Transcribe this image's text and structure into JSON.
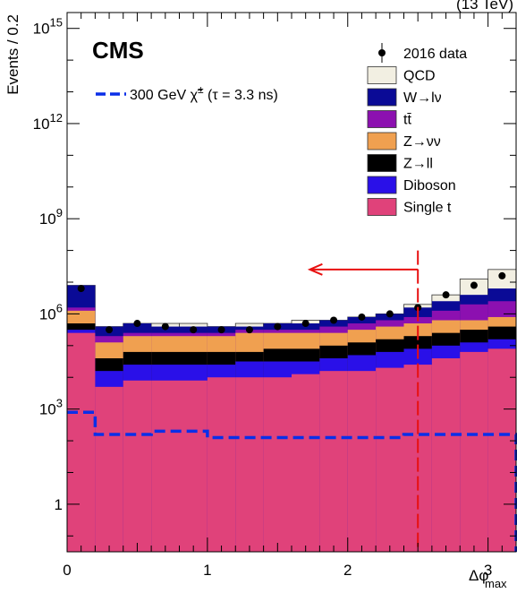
{
  "chart_data": {
    "type": "bar",
    "stacked": true,
    "x_bin_edges": [
      0,
      0.2,
      0.4,
      0.6,
      0.8,
      1.0,
      1.2,
      1.4,
      1.6,
      1.8,
      2.0,
      2.2,
      2.4,
      2.6,
      2.8,
      3.0,
      3.2
    ],
    "xlim": [
      0,
      3.2
    ],
    "ylim_log10": [
      -1.5,
      15.5
    ],
    "y_scale": "log",
    "y_ticks": [
      {
        "exp": 0,
        "label": "1"
      },
      {
        "exp": 3,
        "base": "10",
        "sup": "3"
      },
      {
        "exp": 6,
        "base": "10",
        "sup": "6"
      },
      {
        "exp": 9,
        "base": "10",
        "sup": "9"
      },
      {
        "exp": 12,
        "base": "10",
        "sup": "12"
      },
      {
        "exp": 15,
        "base": "10",
        "sup": "15"
      }
    ],
    "x_ticks": [
      "0",
      "1",
      "2",
      "3"
    ],
    "ylabel": "Events / 0.2",
    "xlabel": "Δφ",
    "xlabel_sub": "max",
    "series": [
      {
        "name": "Single t",
        "color": "#e0427a",
        "log10": [
          5.4,
          3.7,
          3.9,
          3.9,
          3.9,
          4.0,
          4.0,
          4.0,
          4.1,
          4.2,
          4.2,
          4.3,
          4.4,
          4.6,
          4.8,
          4.9
        ]
      },
      {
        "name": "Diboson",
        "color": "#2a10e8",
        "log10": [
          5.5,
          4.2,
          4.4,
          4.4,
          4.4,
          4.4,
          4.5,
          4.5,
          4.5,
          4.6,
          4.7,
          4.8,
          4.9,
          5.0,
          5.1,
          5.2
        ]
      },
      {
        "name": "Z→ll",
        "color": "#000000",
        "log10": [
          5.7,
          4.6,
          4.8,
          4.8,
          4.8,
          4.8,
          4.8,
          4.9,
          4.9,
          5.0,
          5.1,
          5.2,
          5.3,
          5.4,
          5.5,
          5.6
        ]
      },
      {
        "name": "Z→νν",
        "color": "#f0a050",
        "log10": [
          6.1,
          5.1,
          5.3,
          5.3,
          5.3,
          5.3,
          5.4,
          5.4,
          5.4,
          5.4,
          5.5,
          5.6,
          5.7,
          5.8,
          5.8,
          5.9
        ]
      },
      {
        "name": "tt̄",
        "color": "#8c10b0",
        "log10": [
          6.2,
          5.3,
          5.4,
          5.4,
          5.4,
          5.4,
          5.5,
          5.5,
          5.5,
          5.6,
          5.7,
          5.8,
          5.9,
          6.1,
          6.3,
          6.4
        ]
      },
      {
        "name": "W→lν",
        "color": "#0a0a96",
        "log10": [
          6.9,
          5.6,
          5.7,
          5.6,
          5.6,
          5.6,
          5.6,
          5.7,
          5.7,
          5.8,
          5.9,
          6.0,
          6.2,
          6.4,
          6.6,
          6.8
        ]
      },
      {
        "name": "QCD",
        "color": "#f2efe2",
        "log10": [
          6.9,
          5.6,
          5.7,
          5.7,
          5.7,
          5.6,
          5.7,
          5.7,
          5.8,
          5.8,
          5.9,
          6.0,
          6.3,
          6.6,
          7.1,
          7.4
        ]
      }
    ],
    "data_series": {
      "name": "2016 data",
      "x": [
        0.1,
        0.3,
        0.5,
        0.7,
        0.9,
        1.1,
        1.3,
        1.5,
        1.7,
        1.9,
        2.1,
        2.3,
        2.5,
        2.7,
        2.9,
        3.1
      ],
      "log10": [
        6.8,
        5.5,
        5.7,
        5.6,
        5.5,
        5.5,
        5.5,
        5.6,
        5.7,
        5.8,
        5.9,
        6.0,
        6.2,
        6.6,
        6.9,
        7.2
      ]
    },
    "signal_series": {
      "name": "300 GeV χ̃± (τ = 3.3 ns)",
      "color": "#0a2fe8",
      "log10": [
        2.9,
        2.2,
        2.2,
        2.3,
        2.3,
        2.1,
        2.1,
        2.1,
        2.1,
        2.1,
        2.1,
        2.1,
        2.2,
        2.2,
        2.2,
        2.2,
        2.1
      ]
    },
    "cut_line": {
      "x": 2.5,
      "color": "#e81010"
    },
    "annotations": {
      "cms": "CMS",
      "top_right": "(13 TeV)"
    },
    "legend": {
      "placement": "top-right",
      "data_label": "2016 data",
      "entries": [
        "QCD",
        "W→lν",
        "tt̄",
        "Z→νν",
        "Z→ll",
        "Diboson",
        "Single t"
      ]
    },
    "signal_legend": {
      "placement": "top-left",
      "text_before": "300 GeV ",
      "chi": "χ̃",
      "chi_sup": "±",
      "text_after": " (τ = 3.3 ns)"
    }
  }
}
